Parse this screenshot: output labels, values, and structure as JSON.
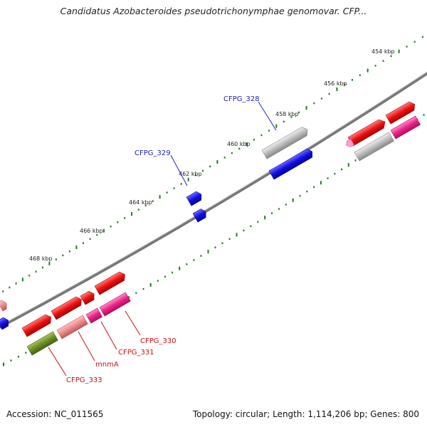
{
  "title": "Candidatus Azobacteroides pseudotrichonymphae genomovar. CFP...",
  "footer": {
    "accession": "Accession: NC_011565",
    "summary": "Topology: circular; Length: 1,114,206 bp; Genes: 800"
  },
  "ticks": [
    "454 kbp",
    "456 kbp",
    "458 kbp",
    "460 kbp",
    "462 kbp",
    "464 kbp",
    "466 kbp",
    "468 kbp"
  ],
  "gene_labels": [
    "CFPG_328",
    "CFPG_329",
    "CFPG_330",
    "CFPG_331",
    "mnmA",
    "CFPG_333"
  ],
  "colors": {
    "backbone": "#777777",
    "tick_dots": "#1e7d1e",
    "blue_gene": "#1010e0",
    "red_gene": "#ee1111",
    "pink_gene": "#ee2288",
    "salmon_gene": "#ee8888",
    "gray_gene": "#bbbbbb",
    "olive_gene": "#6b8e23",
    "blue_label": "#2222bb",
    "red_label": "#cc1111"
  }
}
